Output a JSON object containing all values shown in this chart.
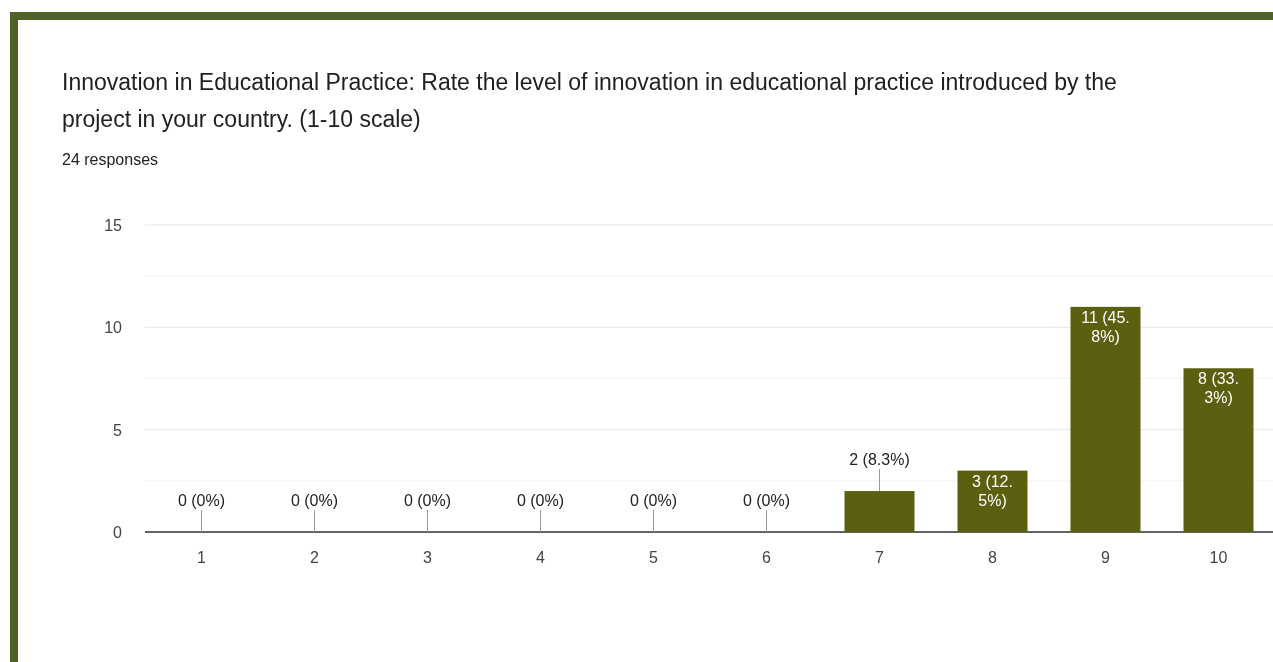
{
  "chart_data": {
    "type": "bar",
    "title": "Innovation in Educational Practice: Rate the level of innovation in educational practice introduced by the project in your country. (1-10 scale)",
    "subtitle": "24 responses",
    "categories": [
      "1",
      "2",
      "3",
      "4",
      "5",
      "6",
      "7",
      "8",
      "9",
      "10"
    ],
    "values": [
      0,
      0,
      0,
      0,
      0,
      0,
      2,
      3,
      11,
      8
    ],
    "value_labels": [
      "0 (0%)",
      "0 (0%)",
      "0 (0%)",
      "0 (0%)",
      "0 (0%)",
      "0 (0%)",
      "2 (8.3%)",
      "3 (12.5%)",
      "11 (45.8%)",
      "8 (33.3%)"
    ],
    "color": "#5b5f0f",
    "ylim": [
      0,
      15
    ],
    "yticks": [
      0,
      {
        "value": 2.5,
        "label": null
      },
      5,
      {
        "value": 7.5,
        "label": null
      },
      10,
      {
        "value": 12.5,
        "label": null
      },
      15
    ],
    "grid": "y"
  }
}
